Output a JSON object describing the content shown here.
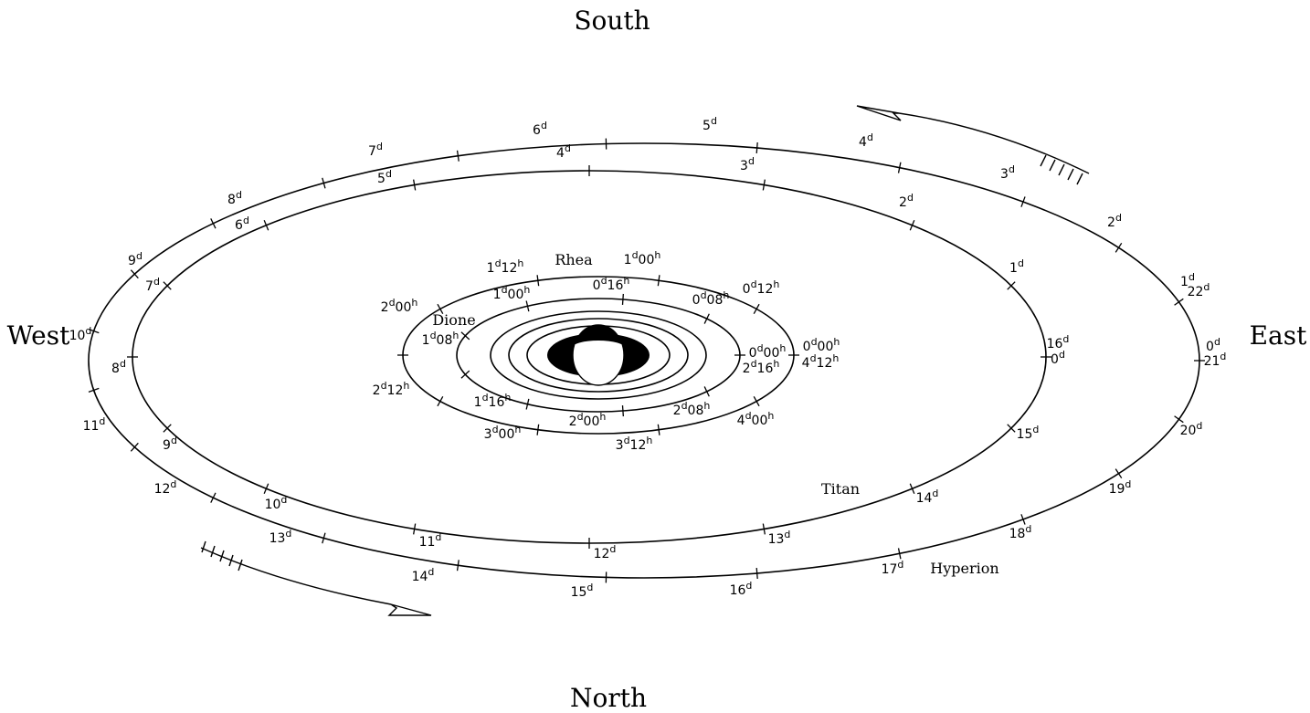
{
  "directions": {
    "south": "South",
    "north": "North",
    "west": "West",
    "east": "East"
  },
  "moon_names": {
    "rhea": "Rhea",
    "dione": "Dione",
    "titan": "Titan",
    "hyperion": "Hyperion"
  },
  "orbit_marks": {
    "hyperion": [
      {
        "n": "0",
        "u": "d"
      },
      {
        "n": "1",
        "u": "d"
      },
      {
        "n": "2",
        "u": "d"
      },
      {
        "n": "3",
        "u": "d"
      },
      {
        "n": "4",
        "u": "d"
      },
      {
        "n": "5",
        "u": "d"
      },
      {
        "n": "6",
        "u": "d"
      },
      {
        "n": "7",
        "u": "d"
      },
      {
        "n": "8",
        "u": "d"
      },
      {
        "n": "9",
        "u": "d"
      },
      {
        "n": "10",
        "u": "d"
      },
      {
        "n": "11",
        "u": "d"
      },
      {
        "n": "12",
        "u": "d"
      },
      {
        "n": "13",
        "u": "d"
      },
      {
        "n": "14",
        "u": "d"
      },
      {
        "n": "15",
        "u": "d"
      },
      {
        "n": "16",
        "u": "d"
      },
      {
        "n": "17",
        "u": "d"
      },
      {
        "n": "18",
        "u": "d"
      },
      {
        "n": "19",
        "u": "d"
      },
      {
        "n": "20",
        "u": "d"
      },
      {
        "n": "21",
        "u": "d"
      },
      {
        "n": "22",
        "u": "d"
      }
    ],
    "titan": [
      {
        "n": "0",
        "u": "d"
      },
      {
        "n": "1",
        "u": "d"
      },
      {
        "n": "2",
        "u": "d"
      },
      {
        "n": "3",
        "u": "d"
      },
      {
        "n": "4",
        "u": "d"
      },
      {
        "n": "5",
        "u": "d"
      },
      {
        "n": "6",
        "u": "d"
      },
      {
        "n": "7",
        "u": "d"
      },
      {
        "n": "8",
        "u": "d"
      },
      {
        "n": "9",
        "u": "d"
      },
      {
        "n": "10",
        "u": "d"
      },
      {
        "n": "11",
        "u": "d"
      },
      {
        "n": "12",
        "u": "d"
      },
      {
        "n": "13",
        "u": "d"
      },
      {
        "n": "14",
        "u": "d"
      },
      {
        "n": "15",
        "u": "d"
      },
      {
        "n": "16",
        "u": "d"
      }
    ],
    "rhea": [
      {
        "d": "0",
        "h": "00"
      },
      {
        "d": "0",
        "h": "12"
      },
      {
        "d": "1",
        "h": "00"
      },
      {
        "d": "1",
        "h": "12"
      },
      {
        "d": "2",
        "h": "00"
      },
      {
        "d": "2",
        "h": "12"
      },
      {
        "d": "3",
        "h": "00"
      },
      {
        "d": "3",
        "h": "12"
      },
      {
        "d": "4",
        "h": "00"
      },
      {
        "d": "4",
        "h": "12"
      }
    ],
    "dione": [
      {
        "d": "0",
        "h": "00"
      },
      {
        "d": "0",
        "h": "08"
      },
      {
        "d": "0",
        "h": "16"
      },
      {
        "d": "1",
        "h": "00"
      },
      {
        "d": "1",
        "h": "08"
      },
      {
        "d": "1",
        "h": "16"
      },
      {
        "d": "2",
        "h": "00"
      },
      {
        "d": "2",
        "h": "08"
      },
      {
        "d": "2",
        "h": "16"
      }
    ]
  },
  "colors": {
    "ink": "#000000",
    "background": "#ffffff"
  }
}
